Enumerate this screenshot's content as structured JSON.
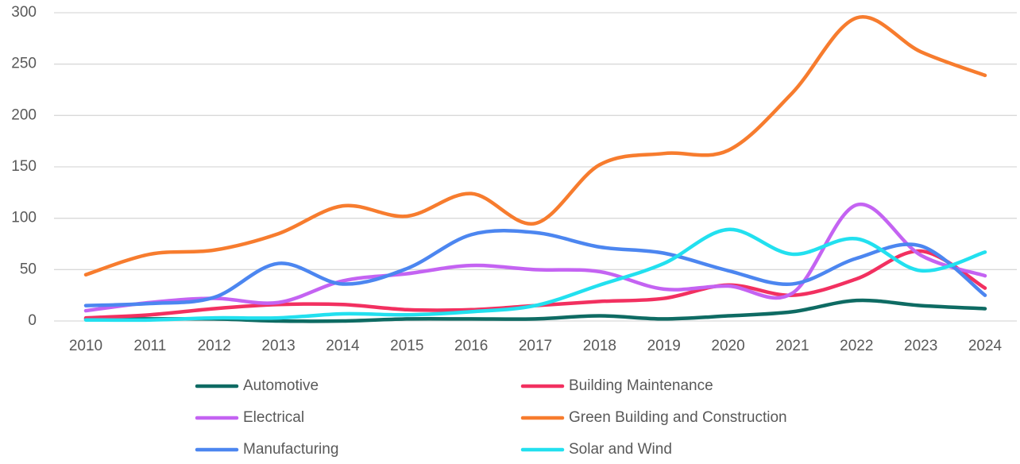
{
  "chart_data": {
    "type": "line",
    "categories": [
      "2010",
      "2011",
      "2012",
      "2013",
      "2014",
      "2015",
      "2016",
      "2017",
      "2018",
      "2019",
      "2020",
      "2021",
      "2022",
      "2023",
      "2024"
    ],
    "series": [
      {
        "name": "Automotive",
        "color": "#0e6b63",
        "values": [
          2,
          2,
          2,
          0,
          0,
          2,
          2,
          2,
          5,
          2,
          5,
          9,
          20,
          15,
          12
        ]
      },
      {
        "name": "Building Maintenance",
        "color": "#f23060",
        "values": [
          3,
          6,
          12,
          16,
          16,
          11,
          11,
          15,
          19,
          22,
          35,
          25,
          41,
          68,
          32
        ]
      },
      {
        "name": "Electrical",
        "color": "#c463f2",
        "values": [
          10,
          18,
          22,
          18,
          39,
          46,
          54,
          50,
          48,
          31,
          34,
          27,
          113,
          64,
          44
        ]
      },
      {
        "name": "Green Building and Construction",
        "color": "#f77c2e",
        "values": [
          45,
          65,
          69,
          85,
          112,
          102,
          124,
          95,
          152,
          163,
          166,
          222,
          295,
          262,
          239
        ]
      },
      {
        "name": "Manufacturing",
        "color": "#4c86f0",
        "values": [
          15,
          17,
          23,
          56,
          36,
          51,
          84,
          86,
          72,
          66,
          49,
          36,
          61,
          73,
          25
        ]
      },
      {
        "name": "Solar and Wind",
        "color": "#22e0ef",
        "values": [
          1,
          1,
          3,
          3,
          7,
          6,
          9,
          15,
          35,
          56,
          89,
          65,
          80,
          49,
          67
        ]
      }
    ],
    "ylim": [
      0,
      300
    ],
    "yticks": [
      0,
      50,
      100,
      150,
      200,
      250,
      300
    ],
    "grid": true,
    "legend": "bottom"
  }
}
